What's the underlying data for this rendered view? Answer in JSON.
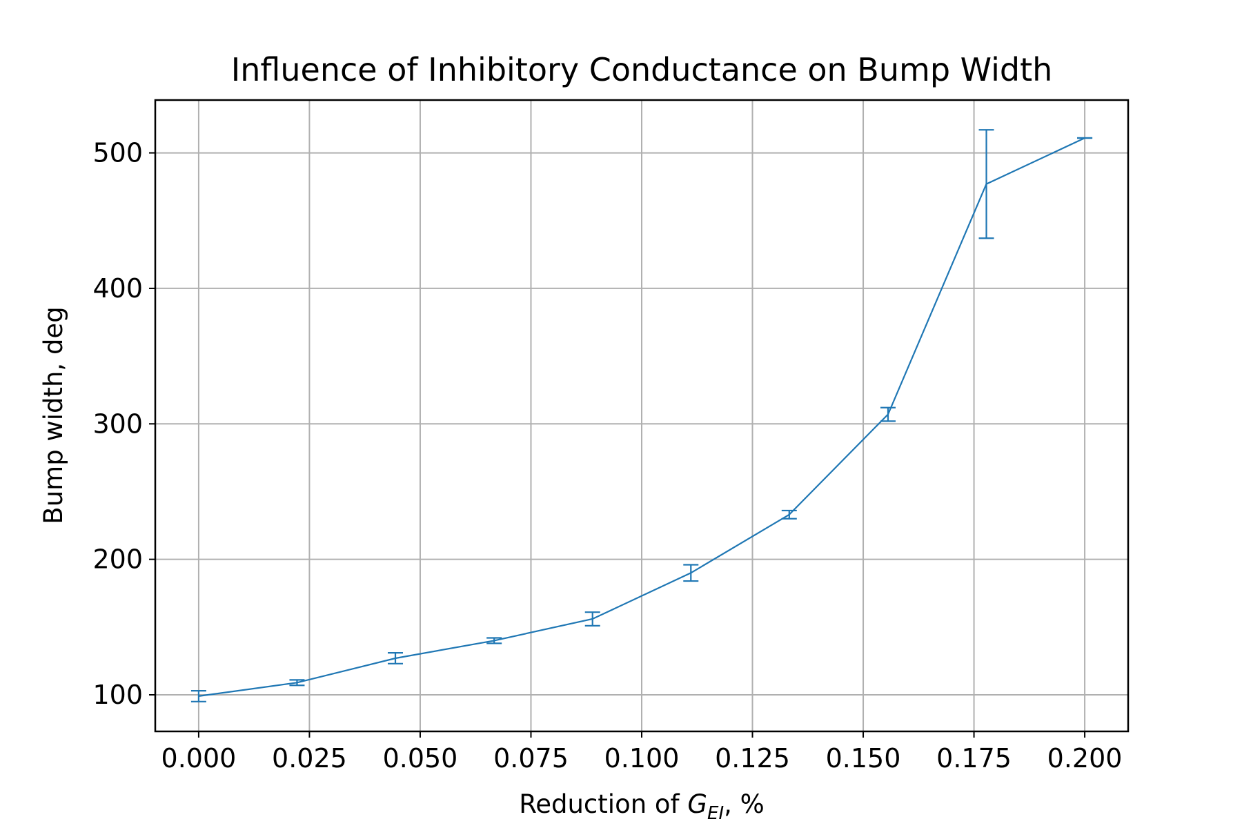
{
  "chart_data": {
    "type": "line",
    "title": "Influence of Inhibitory Conductance on Bump Width",
    "xlabel": {
      "prefix": "Reduction of ",
      "symbol": "G",
      "subscript": "EI",
      "suffix": ", %"
    },
    "ylabel": "Bump width, deg",
    "xlim": [
      -0.0098,
      0.2098
    ],
    "ylim": [
      73,
      539
    ],
    "x_ticks": [
      0.0,
      0.025,
      0.05,
      0.075,
      0.1,
      0.125,
      0.15,
      0.175,
      0.2
    ],
    "x_tick_labels": [
      "0.000",
      "0.025",
      "0.050",
      "0.075",
      "0.100",
      "0.125",
      "0.150",
      "0.175",
      "0.200"
    ],
    "y_ticks": [
      100,
      200,
      300,
      400,
      500
    ],
    "y_tick_labels": [
      "100",
      "200",
      "300",
      "400",
      "500"
    ],
    "grid": true,
    "series": [
      {
        "color": "#1f77b4",
        "x": [
          0.0,
          0.0222,
          0.0444,
          0.0667,
          0.0889,
          0.1111,
          0.1333,
          0.1556,
          0.1778,
          0.2
        ],
        "y": [
          99,
          109,
          127,
          140,
          156,
          190,
          233,
          307,
          477,
          511
        ],
        "yerr": [
          4,
          2,
          4,
          2,
          5,
          6,
          3,
          5,
          40,
          0
        ]
      }
    ]
  }
}
